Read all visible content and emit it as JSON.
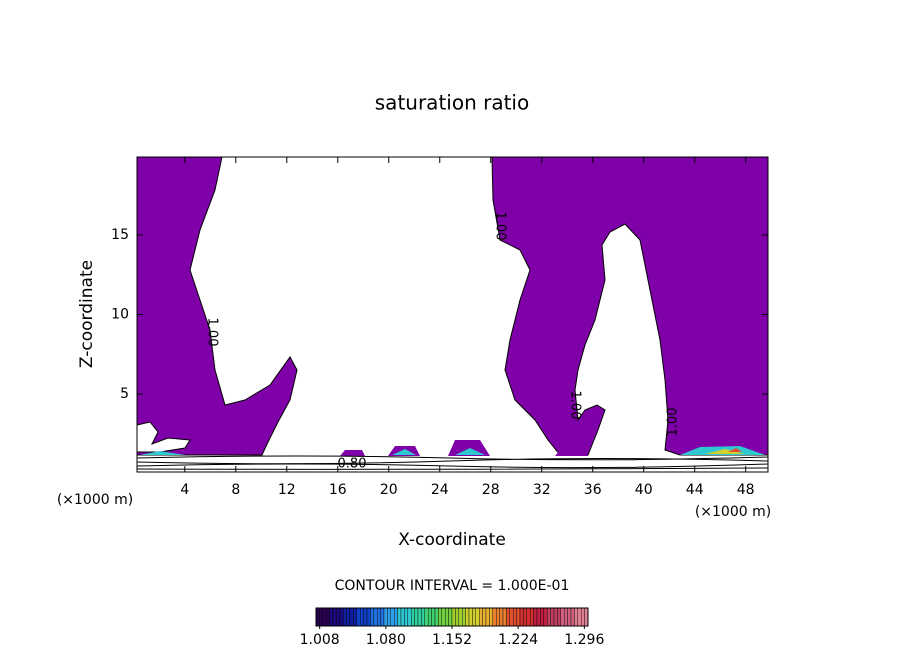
{
  "chart_data": {
    "type": "contour",
    "title": "saturation ratio",
    "x_label": "X-coordinate",
    "y_label": "Z-coordinate",
    "x_unit_left": "(×1000 m)",
    "x_unit_right": "(×1000 m)",
    "xlim": [
      0.25,
      49.75
    ],
    "xticks": [
      4,
      8,
      12,
      16,
      20,
      24,
      28,
      32,
      36,
      40,
      44,
      48
    ],
    "ylim": [
      0.1,
      19.9
    ],
    "yticks": [
      5,
      10,
      15
    ],
    "contour_labels": [
      "1.00",
      "1.00",
      "1.00",
      "1.00",
      "0.80"
    ],
    "fill_color": "#7f00a8",
    "contour_interval": "CONTOUR INTERVAL = 1.000E-01",
    "colorbar": {
      "lim": [
        1.004,
        1.3
      ],
      "ticks": [
        1.008,
        {
          "value": 1.08,
          "label": "1.080"
        },
        1.152,
        1.224,
        1.296
      ],
      "colors": [
        "#2a0050",
        "#1a0a7a",
        "#1020a0",
        "#1040c8",
        "#2070e0",
        "#30a0e8",
        "#30c8d0",
        "#30d0a0",
        "#40d070",
        "#70d040",
        "#a0d030",
        "#d0d030",
        "#e8b030",
        "#e88030",
        "#e05030",
        "#d03030",
        "#c02040",
        "#c04060",
        "#d06080",
        "#e08090"
      ]
    }
  }
}
